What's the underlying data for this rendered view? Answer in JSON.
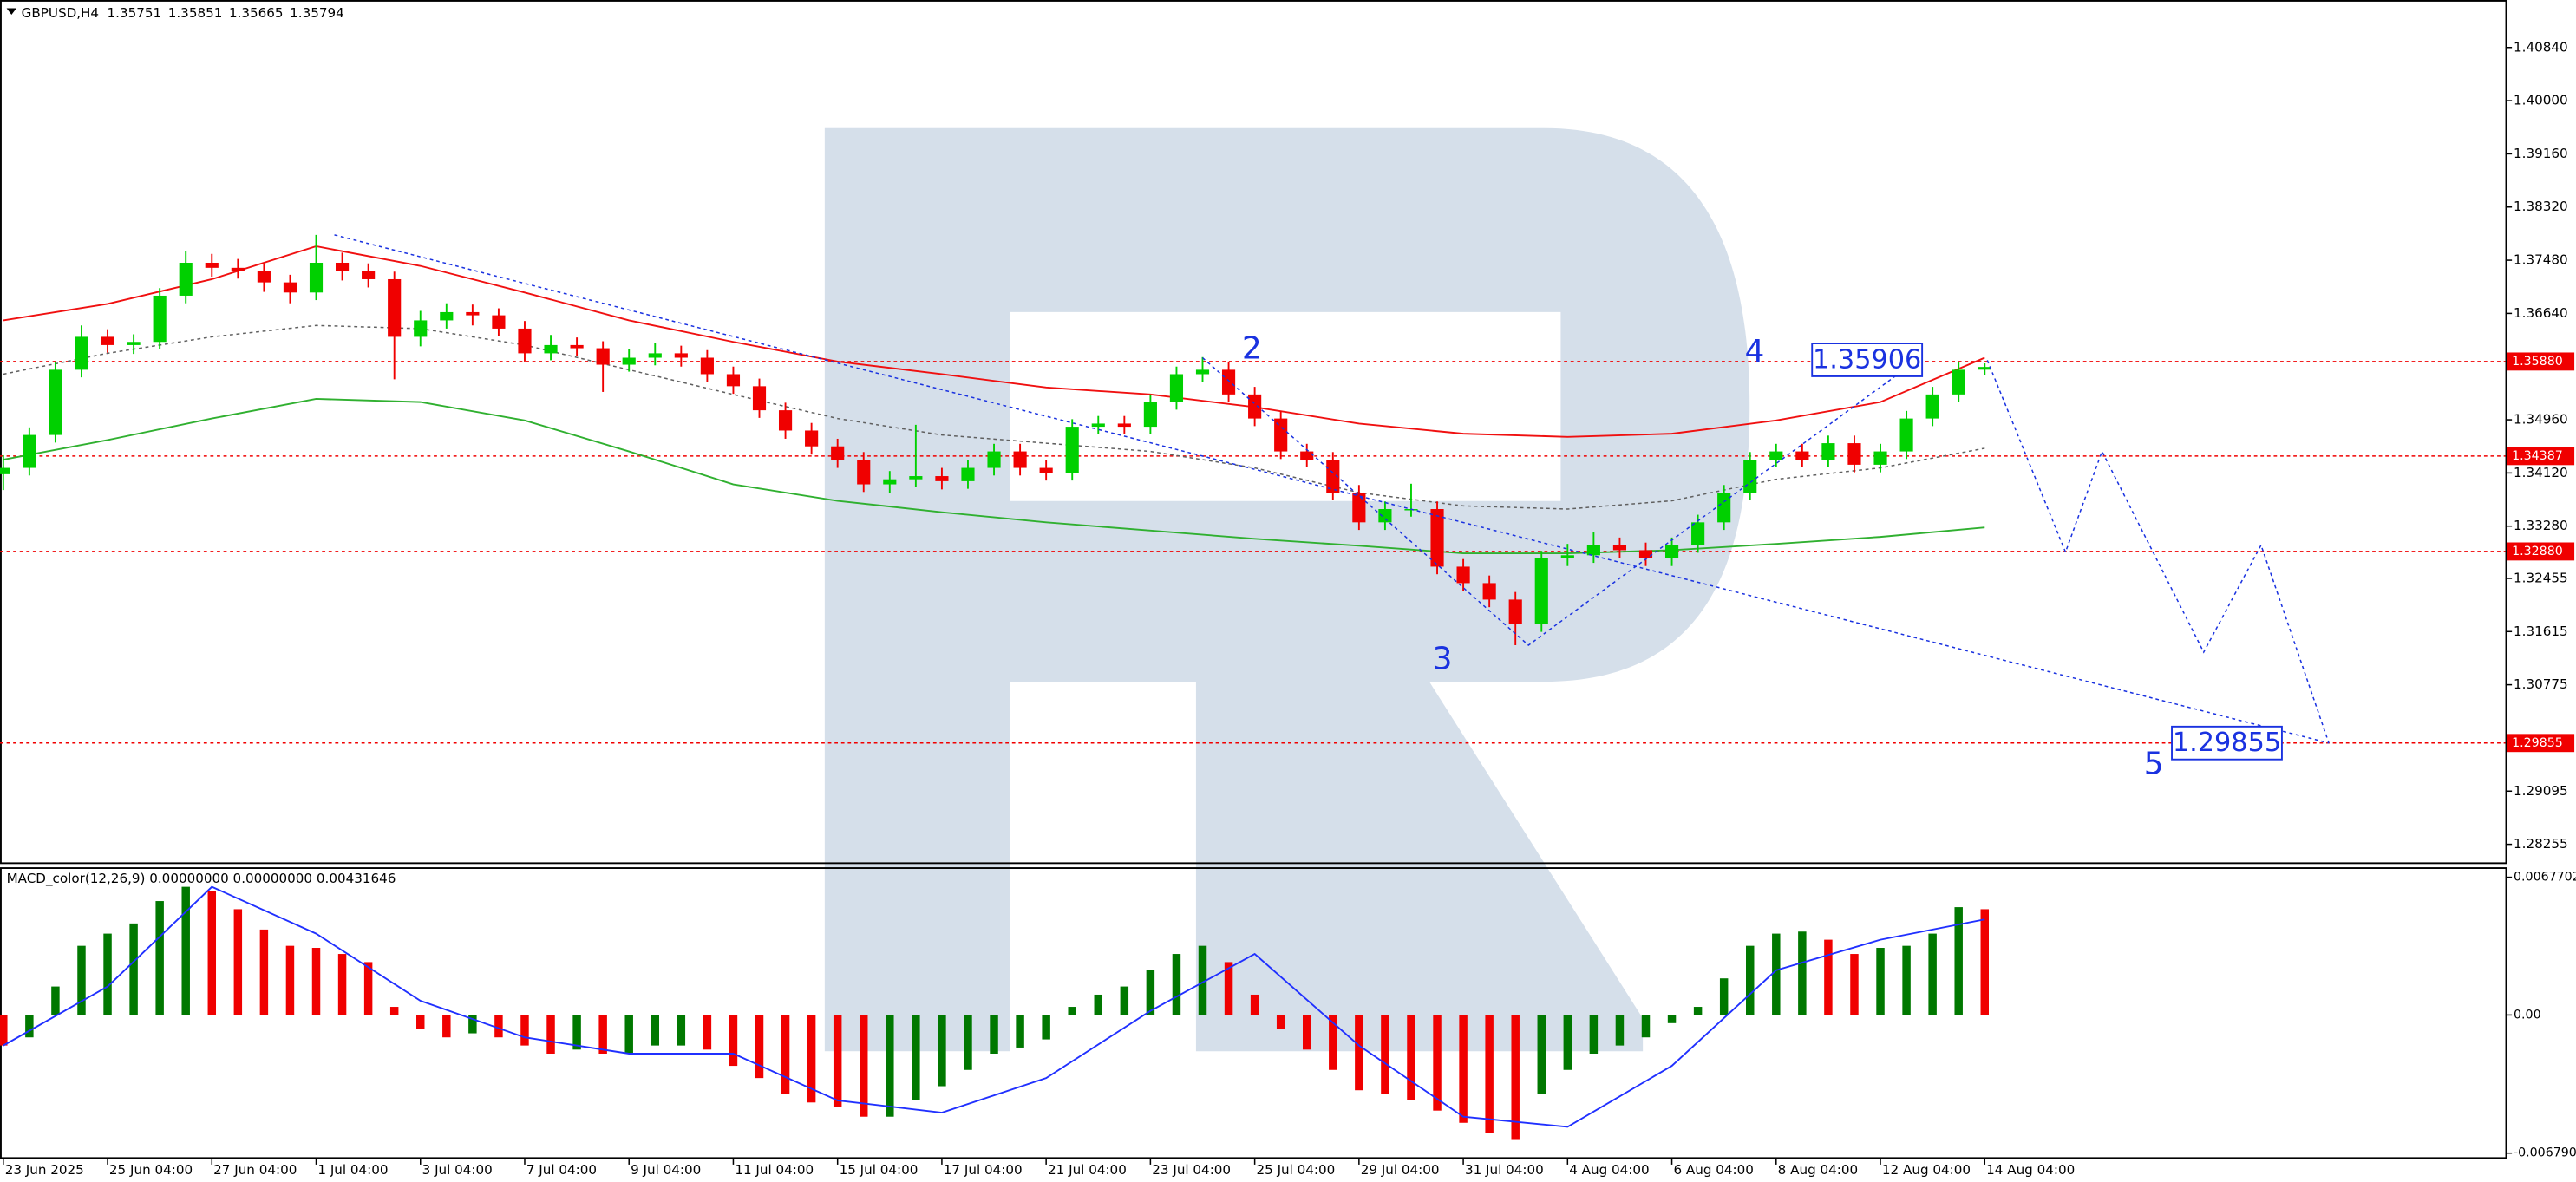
{
  "chart_data": [
    {
      "type": "candlestick",
      "title": "GBPUSD,H4",
      "open": [
        1.341,
        1.342,
        1.3472,
        1.3575,
        1.3627,
        1.3614,
        1.3619,
        1.3692,
        1.3744,
        1.3736,
        1.3731,
        1.3713,
        1.3697,
        1.3744,
        1.3731,
        1.3718,
        1.3627,
        1.3653,
        1.3666,
        1.3661,
        1.364,
        1.3601,
        1.3614,
        1.3609,
        1.3583,
        1.3594,
        1.3601,
        1.3594,
        1.3568,
        1.3549,
        1.3511,
        1.3479,
        1.3454,
        1.3433,
        1.3394,
        1.3402,
        1.3407,
        1.3399,
        1.342,
        1.3446,
        1.342,
        1.3412,
        1.3485,
        1.349,
        1.3485,
        1.3524,
        1.3568,
        1.3575,
        1.3536,
        1.3498,
        1.3446,
        1.3433,
        1.3381,
        1.3334,
        1.3355,
        1.3355,
        1.3264,
        1.3238,
        1.3212,
        1.3173,
        1.3277,
        1.3282,
        1.3298,
        1.329,
        1.3277,
        1.3298,
        1.3334,
        1.3381,
        1.3433,
        1.3446,
        1.3433,
        1.3459,
        1.3425,
        1.3446,
        1.3498,
        1.3536,
        1.35751
      ],
      "high": [
        1.344,
        1.3484,
        1.3587,
        1.3645,
        1.3639,
        1.3631,
        1.3704,
        1.3762,
        1.3758,
        1.375,
        1.3743,
        1.3725,
        1.3788,
        1.376,
        1.3743,
        1.373,
        1.3668,
        1.368,
        1.3678,
        1.3672,
        1.3652,
        1.363,
        1.3626,
        1.362,
        1.3608,
        1.3618,
        1.3613,
        1.3606,
        1.358,
        1.3561,
        1.3523,
        1.3491,
        1.3466,
        1.3445,
        1.3415,
        1.3488,
        1.342,
        1.3432,
        1.3458,
        1.3458,
        1.3432,
        1.3497,
        1.3502,
        1.3502,
        1.3536,
        1.358,
        1.3595,
        1.3587,
        1.3548,
        1.351,
        1.3458,
        1.3445,
        1.3393,
        1.3367,
        1.3395,
        1.3367,
        1.3276,
        1.325,
        1.3224,
        1.3289,
        1.33,
        1.3318,
        1.331,
        1.3302,
        1.331,
        1.3346,
        1.3393,
        1.3445,
        1.3458,
        1.3458,
        1.3471,
        1.3471,
        1.3458,
        1.351,
        1.3548,
        1.3587,
        1.35851
      ],
      "low": [
        1.3385,
        1.3408,
        1.346,
        1.3563,
        1.3602,
        1.36,
        1.3607,
        1.368,
        1.3722,
        1.3719,
        1.3698,
        1.368,
        1.3685,
        1.3716,
        1.3705,
        1.356,
        1.3612,
        1.364,
        1.3645,
        1.3628,
        1.3588,
        1.359,
        1.3597,
        1.354,
        1.3572,
        1.3582,
        1.358,
        1.3555,
        1.3537,
        1.3499,
        1.3466,
        1.3441,
        1.342,
        1.3382,
        1.338,
        1.339,
        1.3386,
        1.3387,
        1.3408,
        1.3408,
        1.34,
        1.34,
        1.3473,
        1.3473,
        1.3473,
        1.3512,
        1.3556,
        1.3524,
        1.3486,
        1.3434,
        1.3421,
        1.3369,
        1.3322,
        1.3322,
        1.3343,
        1.3252,
        1.3226,
        1.32,
        1.314,
        1.3161,
        1.3265,
        1.327,
        1.3278,
        1.3265,
        1.3265,
        1.3286,
        1.3322,
        1.3369,
        1.3421,
        1.3421,
        1.3421,
        1.3413,
        1.3413,
        1.3434,
        1.3486,
        1.3524,
        1.35665
      ],
      "close": [
        1.342,
        1.3472,
        1.3575,
        1.3627,
        1.3614,
        1.3619,
        1.3692,
        1.3744,
        1.3736,
        1.3731,
        1.3713,
        1.3697,
        1.3744,
        1.3731,
        1.3718,
        1.3627,
        1.3653,
        1.3666,
        1.3661,
        1.364,
        1.3601,
        1.3614,
        1.3609,
        1.3583,
        1.3594,
        1.3601,
        1.3594,
        1.3568,
        1.3549,
        1.3511,
        1.3479,
        1.3454,
        1.3433,
        1.3394,
        1.3402,
        1.3407,
        1.3399,
        1.342,
        1.3446,
        1.342,
        1.3412,
        1.3485,
        1.349,
        1.3485,
        1.3524,
        1.3568,
        1.3575,
        1.3536,
        1.3498,
        1.3446,
        1.3433,
        1.3381,
        1.3334,
        1.3355,
        1.3355,
        1.3264,
        1.3238,
        1.3212,
        1.3173,
        1.3277,
        1.3282,
        1.3298,
        1.329,
        1.3277,
        1.3298,
        1.3334,
        1.3381,
        1.3433,
        1.3446,
        1.3433,
        1.3459,
        1.3425,
        1.3446,
        1.3498,
        1.3536,
        1.3575,
        1.35794
      ],
      "up_color": "#00d000",
      "down_color": "#f00000",
      "lines": [
        {
          "color": "#f01010",
          "dash": false,
          "x": [
            0,
            4,
            8,
            12,
            16,
            20,
            24,
            28,
            32,
            36,
            40,
            44,
            48,
            52,
            56,
            60,
            64,
            68,
            72,
            76
          ],
          "values": [
            1.3653,
            1.3679,
            1.3718,
            1.377,
            1.3739,
            1.3697,
            1.3653,
            1.3619,
            1.3588,
            1.3568,
            1.3547,
            1.3536,
            1.3516,
            1.349,
            1.3474,
            1.3469,
            1.3474,
            1.3495,
            1.3524,
            1.3594
          ]
        },
        {
          "color": "#30b030",
          "dash": false,
          "x": [
            0,
            4,
            8,
            12,
            16,
            20,
            24,
            28,
            32,
            36,
            40,
            44,
            48,
            52,
            56,
            60,
            64,
            68,
            72,
            76
          ],
          "values": [
            1.3433,
            1.3464,
            1.3498,
            1.3529,
            1.3524,
            1.3495,
            1.3446,
            1.3394,
            1.3368,
            1.335,
            1.3334,
            1.3321,
            1.3308,
            1.3297,
            1.3285,
            1.3285,
            1.329,
            1.33,
            1.3311,
            1.3326
          ]
        },
        {
          "color": "#606060",
          "dash": true,
          "x": [
            0,
            4,
            8,
            12,
            16,
            20,
            24,
            28,
            32,
            36,
            40,
            44,
            48,
            52,
            56,
            60,
            64,
            68,
            72,
            76
          ],
          "values": [
            1.3568,
            1.3601,
            1.3627,
            1.3645,
            1.364,
            1.3614,
            1.3575,
            1.3536,
            1.3498,
            1.3472,
            1.3459,
            1.3446,
            1.342,
            1.3381,
            1.336,
            1.3355,
            1.3368,
            1.3402,
            1.342,
            1.3451
          ]
        }
      ],
      "levels": [
        {
          "value": 1.3588,
          "label": "1.35880"
        },
        {
          "value": 1.34387,
          "label": "1.34387"
        },
        {
          "value": 1.3288,
          "label": "1.32880"
        },
        {
          "value": 1.29855,
          "label": "1.29855"
        }
      ],
      "level_color": "#f00000",
      "wave_color": "#1a32e0",
      "wave_lines": [
        {
          "points": [
            [
              12.7,
              1.3788
            ],
            [
              89.2,
              1.29855
            ]
          ]
        },
        {
          "points": [
            [
              46,
              1.3594
            ],
            [
              58.5,
              1.314
            ],
            [
              73.4,
              1.359
            ]
          ]
        },
        {
          "points": [
            [
              76.1,
              1.359
            ],
            [
              79.1,
              1.3287
            ],
            [
              80.5,
              1.3446
            ],
            [
              84.4,
              1.3129
            ],
            [
              86.6,
              1.3298
            ],
            [
              89.2,
              1.29855
            ]
          ]
        }
      ],
      "wave_labels": [
        "2",
        "3",
        "4",
        "5"
      ],
      "price_boxes": [
        1.35906,
        1.29855
      ],
      "xlim": [
        -0.126,
        95.97
      ],
      "ylim": [
        1.2797,
        1.4159
      ],
      "yticks": [
        {
          "value": 1.4084,
          "label": "1.40840"
        },
        {
          "value": 1.4,
          "label": "1.40000"
        },
        {
          "value": 1.3916,
          "label": "1.39160"
        },
        {
          "value": 1.3832,
          "label": "1.38320"
        },
        {
          "value": 1.3748,
          "label": "1.37480"
        },
        {
          "value": 1.3664,
          "label": "1.36640"
        },
        {
          "value": 1.3496,
          "label": "1.34960"
        },
        {
          "value": 1.3412,
          "label": "1.34120"
        },
        {
          "value": 1.3328,
          "label": "1.33280"
        },
        {
          "value": 1.32455,
          "label": "1.32455"
        },
        {
          "value": 1.31615,
          "label": "1.31615"
        },
        {
          "value": 1.30775,
          "label": "1.30775"
        },
        {
          "value": 1.29095,
          "label": "1.29095"
        },
        {
          "value": 1.28255,
          "label": "1.28255"
        }
      ],
      "xticks": [
        {
          "value": 0,
          "label": "23 Jun 2025"
        },
        {
          "value": 4,
          "label": "25 Jun 04:00"
        },
        {
          "value": 8,
          "label": "27 Jun 04:00"
        },
        {
          "value": 12,
          "label": "1 Jul 04:00"
        },
        {
          "value": 16,
          "label": "3 Jul 04:00"
        },
        {
          "value": 20,
          "label": "7 Jul 04:00"
        },
        {
          "value": 24,
          "label": "9 Jul 04:00"
        },
        {
          "value": 28,
          "label": "11 Jul 04:00"
        },
        {
          "value": 32,
          "label": "15 Jul 04:00"
        },
        {
          "value": 36,
          "label": "17 Jul 04:00"
        },
        {
          "value": 40,
          "label": "21 Jul 04:00"
        },
        {
          "value": 44,
          "label": "23 Jul 04:00"
        },
        {
          "value": 48,
          "label": "25 Jul 04:00"
        },
        {
          "value": 52,
          "label": "29 Jul 04:00"
        },
        {
          "value": 56,
          "label": "31 Jul 04:00"
        },
        {
          "value": 60,
          "label": "4 Aug 04:00"
        },
        {
          "value": 64,
          "label": "6 Aug 04:00"
        },
        {
          "value": 68,
          "label": "8 Aug 04:00"
        },
        {
          "value": 72,
          "label": "12 Aug 04:00"
        },
        {
          "value": 76,
          "label": "14 Aug 04:00"
        }
      ]
    },
    {
      "type": "histogram",
      "title": "MACD_color(12,26,9) 0.00000000 0.00000000 0.00431646",
      "values": [
        -0.0015,
        -0.0011,
        0.0014,
        0.0034,
        0.004,
        0.0045,
        0.0056,
        0.0063,
        0.0061,
        0.0052,
        0.0042,
        0.0034,
        0.0033,
        0.003,
        0.0026,
        0.0004,
        -0.0007,
        -0.0011,
        -0.0009,
        -0.0011,
        -0.0015,
        -0.0019,
        -0.0017,
        -0.0019,
        -0.0019,
        -0.0015,
        -0.0015,
        -0.0017,
        -0.0025,
        -0.0031,
        -0.0039,
        -0.0043,
        -0.0045,
        -0.005,
        -0.005,
        -0.0042,
        -0.0035,
        -0.0027,
        -0.0019,
        -0.0016,
        -0.0012,
        0.0004,
        0.001,
        0.0014,
        0.0022,
        0.003,
        0.0034,
        0.0026,
        0.001,
        -0.0007,
        -0.0017,
        -0.0027,
        -0.0037,
        -0.0039,
        -0.0042,
        -0.0047,
        -0.0053,
        -0.0058,
        -0.0061,
        -0.0039,
        -0.0027,
        -0.0019,
        -0.0015,
        -0.0011,
        -0.0004,
        0.0004,
        0.0018,
        0.0034,
        0.004,
        0.0041,
        0.0037,
        0.003,
        0.0033,
        0.0034,
        0.004,
        0.0053,
        0.0052
      ],
      "up_color": "#007800",
      "down_color": "#f00000",
      "signal": {
        "color": "#2030ff",
        "x": [
          0,
          4,
          8,
          12,
          16,
          20,
          24,
          28,
          32,
          36,
          40,
          44,
          48,
          52,
          56,
          60,
          64,
          68,
          72,
          76
        ],
        "values": [
          -0.0015,
          0.0014,
          0.0063,
          0.004,
          0.0007,
          -0.0011,
          -0.0019,
          -0.0019,
          -0.0042,
          -0.0048,
          -0.0031,
          0.0002,
          0.003,
          -0.0015,
          -0.005,
          -0.0055,
          -0.0025,
          0.0022,
          0.0037,
          0.0047
        ]
      },
      "ylim": [
        -0.00703,
        0.00718
      ],
      "yticks": [
        0.0067702,
        {
          "value": 0,
          "label": "0.00"
        },
        {
          "value": -0.00679,
          "label": "-0.006790"
        }
      ]
    }
  ]
}
